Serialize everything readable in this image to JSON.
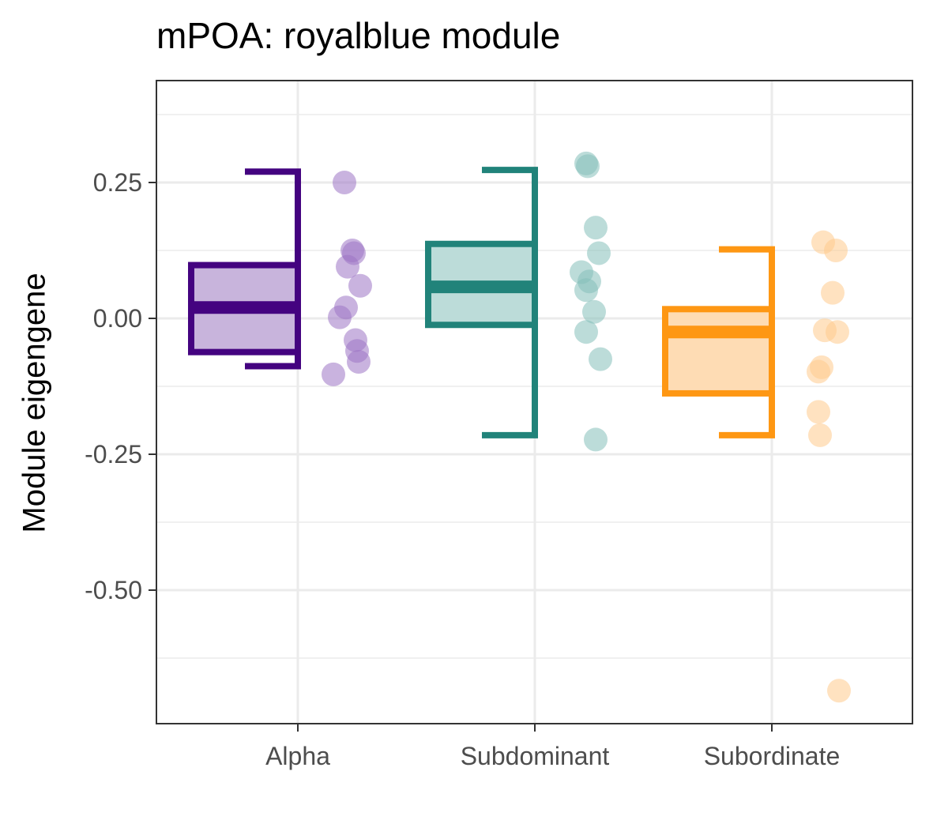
{
  "chart_data": {
    "type": "boxplot",
    "title": "mPOA: royalblue module",
    "ylabel": "Module eigengene",
    "xlabel": "",
    "ylim": [
      -0.75,
      0.43
    ],
    "yticks": [
      0.25,
      0.0,
      -0.25,
      -0.5
    ],
    "ytick_labels": [
      "0.25",
      "0.00",
      "-0.25",
      "-0.50"
    ],
    "grid": true,
    "categories": [
      "Alpha",
      "Subdominant",
      "Subordinate"
    ],
    "groups": [
      {
        "name": "Alpha",
        "color": "#440380",
        "fill": "#c8b4dc",
        "point_color": "#9d75c4",
        "box": {
          "q1": -0.062,
          "median": 0.02,
          "q3": 0.098,
          "whisker_low": -0.088,
          "whisker_high": 0.27
        },
        "points": [
          0.25,
          0.125,
          0.12,
          0.095,
          0.06,
          0.02,
          0.002,
          -0.04,
          -0.06,
          -0.08,
          -0.103
        ]
      },
      {
        "name": "Subdominant",
        "color": "#21837a",
        "fill": "#bcdcd9",
        "point_color": "#85bfb9",
        "box": {
          "q1": -0.012,
          "median": 0.058,
          "q3": 0.137,
          "whisker_low": -0.215,
          "whisker_high": 0.273
        },
        "points": [
          0.285,
          0.28,
          0.167,
          0.12,
          0.085,
          0.068,
          0.052,
          0.012,
          -0.025,
          -0.075,
          -0.223
        ]
      },
      {
        "name": "Subordinate",
        "color": "#fe9713",
        "fill": "#fedcb4",
        "point_color": "#ffca8c",
        "box": {
          "q1": -0.138,
          "median": -0.025,
          "q3": 0.017,
          "whisker_low": -0.215,
          "whisker_high": 0.127
        },
        "points": [
          0.14,
          0.125,
          0.047,
          -0.022,
          -0.025,
          -0.09,
          -0.098,
          -0.172,
          -0.215,
          -0.685
        ]
      }
    ]
  }
}
